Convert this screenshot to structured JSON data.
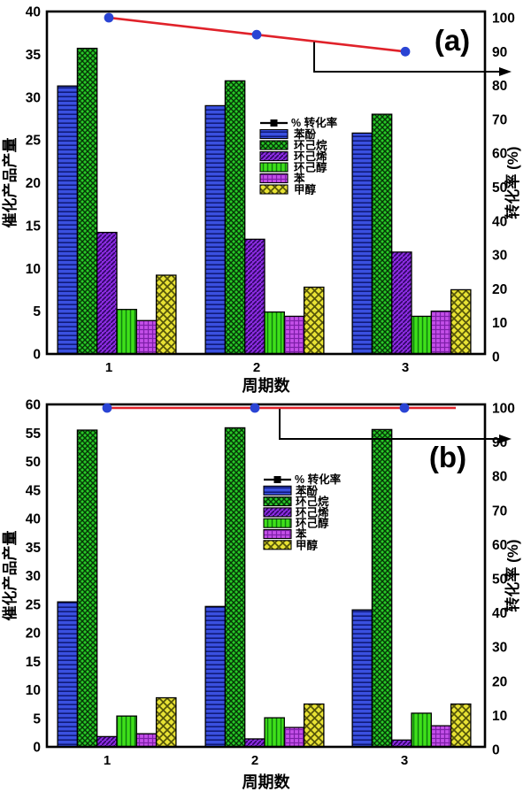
{
  "figure": {
    "background": "#ffffff",
    "axis_color": "#000000"
  },
  "chart_data": [
    {
      "type": "bar",
      "panel_label": "(a)",
      "xlabel": "周期数",
      "x_tick_labels": [
        "1",
        "2",
        "3"
      ],
      "ylabel_left": "催化产品产量",
      "ylabel_right": "转化率 (%)",
      "left_axis": {
        "min": 0,
        "max": 40,
        "tick_step": 5
      },
      "right_axis": {
        "min": 0,
        "max": 100,
        "tick_step": 10
      },
      "legend_position": "center",
      "grid": false,
      "line_series": {
        "label": "% 转化率",
        "values": [
          100,
          95,
          90
        ],
        "axis": "right",
        "line_color": "#e0222a",
        "marker_color": "#2a44d4"
      },
      "bar_series": [
        {
          "label": "苯酚",
          "values": [
            31.3,
            29.0,
            25.8
          ],
          "fill": "#3a50e0",
          "pattern": "hlines",
          "pattern_color": "#101a7a"
        },
        {
          "label": "环己烷",
          "values": [
            35.7,
            31.9,
            28.0
          ],
          "fill": "#28c828",
          "pattern": "crosshatch",
          "pattern_color": "#063806"
        },
        {
          "label": "环己烯",
          "values": [
            14.2,
            13.4,
            11.9
          ],
          "fill": "#8b2be0",
          "pattern": "diag",
          "pattern_color": "#2d0560"
        },
        {
          "label": "环己醇",
          "values": [
            5.2,
            4.9,
            4.4
          ],
          "fill": "#3fe01a",
          "pattern": "vlines",
          "pattern_color": "#0e7d0e"
        },
        {
          "label": "苯",
          "values": [
            3.9,
            4.4,
            5.0
          ],
          "fill": "#c44fe8",
          "pattern": "grid",
          "pattern_color": "#7d1fa8"
        },
        {
          "label": "甲醇",
          "values": [
            9.2,
            7.8,
            7.5
          ],
          "fill": "#e8e234",
          "pattern": "crosshatch-large",
          "pattern_color": "#55550a"
        }
      ]
    },
    {
      "type": "bar",
      "panel_label": "(b)",
      "xlabel": "周期数",
      "x_tick_labels": [
        "1",
        "2",
        "3"
      ],
      "ylabel_left": "催化产品产量",
      "ylabel_right": "转化率 (%)",
      "left_axis": {
        "min": 0,
        "max": 60,
        "tick_step": 5
      },
      "right_axis": {
        "min": 0,
        "max": 100,
        "tick_step": 10
      },
      "legend_position": "center",
      "grid": false,
      "line_series": {
        "label": "% 转化率",
        "values": [
          100,
          100,
          100
        ],
        "axis": "right",
        "line_color": "#e0222a",
        "marker_color": "#2a44d4"
      },
      "bar_series": [
        {
          "label": "苯酚",
          "values": [
            25.4,
            24.6,
            24.0
          ],
          "fill": "#3a50e0",
          "pattern": "hlines",
          "pattern_color": "#101a7a"
        },
        {
          "label": "环己烷",
          "values": [
            55.5,
            55.9,
            55.6
          ],
          "fill": "#28c828",
          "pattern": "crosshatch",
          "pattern_color": "#063806"
        },
        {
          "label": "环己烯",
          "values": [
            1.8,
            1.4,
            1.2
          ],
          "fill": "#8b2be0",
          "pattern": "diag",
          "pattern_color": "#2d0560"
        },
        {
          "label": "环己醇",
          "values": [
            5.4,
            5.1,
            5.9
          ],
          "fill": "#3fe01a",
          "pattern": "vlines",
          "pattern_color": "#0e7d0e"
        },
        {
          "label": "苯",
          "values": [
            2.3,
            3.4,
            3.7
          ],
          "fill": "#c44fe8",
          "pattern": "grid",
          "pattern_color": "#7d1fa8"
        },
        {
          "label": "甲醇",
          "values": [
            8.6,
            7.5,
            7.5
          ],
          "fill": "#e8e234",
          "pattern": "crosshatch-large",
          "pattern_color": "#55550a"
        }
      ]
    }
  ]
}
